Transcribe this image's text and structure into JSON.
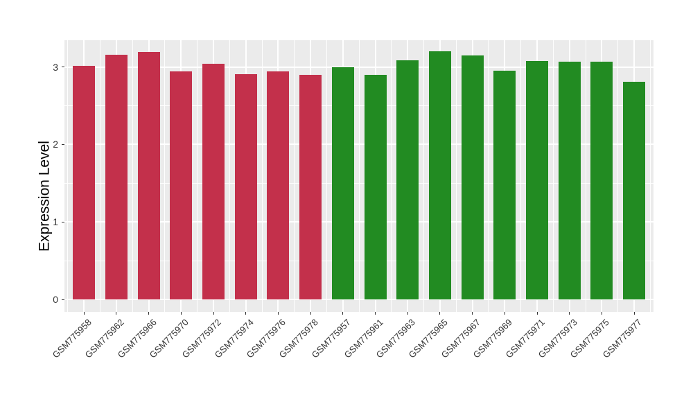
{
  "chart_data": {
    "type": "bar",
    "title": "",
    "xlabel": "",
    "ylabel": "Expression Level",
    "categories": [
      "GSM775958",
      "GSM775962",
      "GSM775966",
      "GSM775970",
      "GSM775972",
      "GSM775974",
      "GSM775976",
      "GSM775978",
      "GSM775957",
      "GSM775961",
      "GSM775963",
      "GSM775965",
      "GSM775967",
      "GSM775969",
      "GSM775971",
      "GSM775973",
      "GSM775975",
      "GSM775977"
    ],
    "series": [
      {
        "name": "Expression Level",
        "values": [
          3.01,
          3.16,
          3.19,
          2.94,
          3.04,
          2.91,
          2.94,
          2.9,
          3.0,
          2.9,
          3.09,
          3.2,
          3.15,
          2.95,
          3.08,
          3.07,
          3.07,
          2.81
        ]
      }
    ],
    "bar_groups": [
      "group1",
      "group1",
      "group1",
      "group1",
      "group1",
      "group1",
      "group1",
      "group1",
      "group2",
      "group2",
      "group2",
      "group2",
      "group2",
      "group2",
      "group2",
      "group2",
      "group2",
      "group2"
    ],
    "group_colors": {
      "group1": "#C3304B",
      "group2": "#228B22"
    },
    "yticks": [
      0,
      1,
      2,
      3
    ],
    "yminor": [
      0.5,
      1.5,
      2.5
    ],
    "ylim": [
      -0.16,
      3.35
    ],
    "grid": true,
    "legend_position": "none",
    "colors": {
      "background": "#FFFFFF",
      "panel_background": "#EBEBEB",
      "grid": "#FFFFFF",
      "tick": "#333333",
      "axis_text": "#333333",
      "axis_title": "#000000"
    }
  }
}
